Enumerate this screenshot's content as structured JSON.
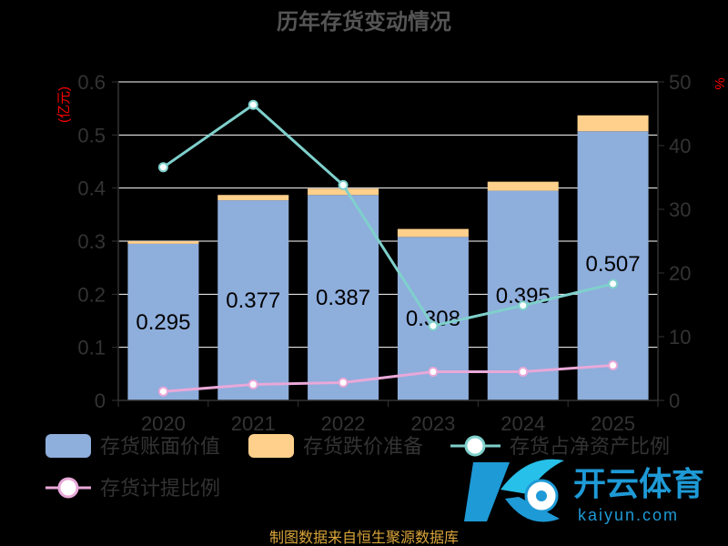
{
  "chart_data": {
    "type": "bar",
    "title": "历年存货变动情况",
    "categories": [
      "2020",
      "2021",
      "2022",
      "2023",
      "2024",
      "2025"
    ],
    "y_left": {
      "label": "(亿元)",
      "ylim": [
        0,
        0.6
      ],
      "ticks": [
        "0",
        "0.1",
        "0.2",
        "0.3",
        "0.4",
        "0.5",
        "0.6"
      ]
    },
    "y_right": {
      "label": "%",
      "ylim": [
        0,
        50
      ],
      "ticks": [
        "0",
        "10",
        "20",
        "30",
        "40",
        "50"
      ]
    },
    "grid": true,
    "series": [
      {
        "name": "存货账面价值",
        "type": "bar",
        "stack": "inv",
        "values": [
          0.295,
          0.377,
          0.387,
          0.308,
          0.395,
          0.507
        ],
        "color": "#8eaedc",
        "data_labels": [
          "0.295",
          "0.377",
          "0.387",
          "0.308",
          "0.395",
          "0.507"
        ]
      },
      {
        "name": "存货跌价准备",
        "type": "bar",
        "stack": "inv",
        "values": [
          0.005,
          0.01,
          0.012,
          0.015,
          0.017,
          0.03
        ],
        "color": "#ffd08c"
      },
      {
        "name": "存货占净资产比例",
        "type": "line",
        "axis": "right",
        "values": [
          36.6,
          46.4,
          33.8,
          11.7,
          14.9,
          18.3
        ],
        "color": "#7fd0cc"
      },
      {
        "name": "存货计提比例",
        "type": "line",
        "axis": "right",
        "values": [
          1.4,
          2.5,
          2.8,
          4.5,
          4.5,
          5.5
        ],
        "color": "#e8a8d8"
      }
    ],
    "legend_position": "bottom"
  },
  "source": "制图数据来自恒生聚源数据库",
  "watermark": {
    "brand": "开云体育",
    "site": "kaiyun.com"
  },
  "colors": {
    "background": "#000000",
    "grid": "#ffffff",
    "axis_text": "#333333",
    "unit_label": "#ff0000",
    "source_text": "#d9a43a"
  }
}
